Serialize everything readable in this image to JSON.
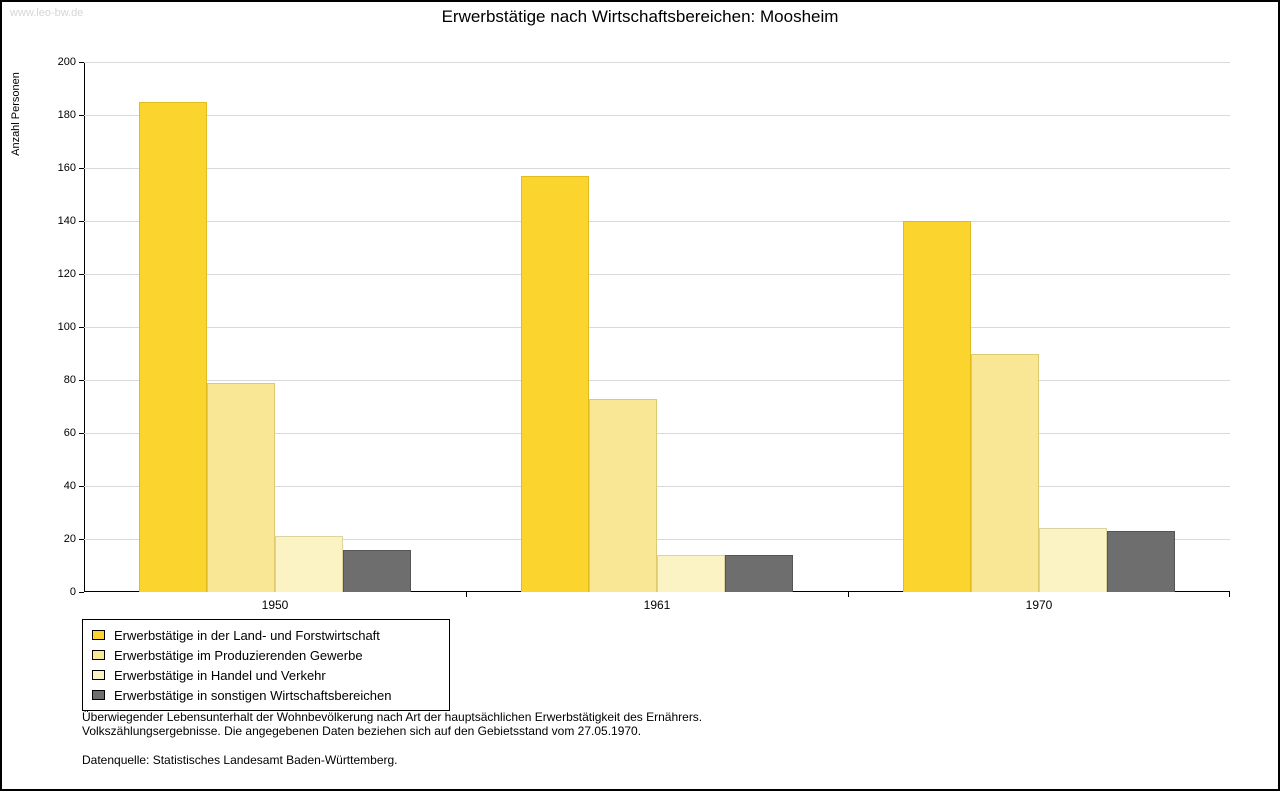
{
  "watermark": "www.leo-bw.de",
  "chart_data": {
    "type": "bar",
    "title": "Erwerbstätige nach Wirtschaftsbereichen: Moosheim",
    "ylabel": "Anzahl Personen",
    "xlabel": "",
    "ylim": [
      0,
      200
    ],
    "ytick_step": 20,
    "grid": true,
    "legend_position": "bottom-left",
    "categories": [
      "1950",
      "1961",
      "1970"
    ],
    "series": [
      {
        "name": "Erwerbstätige in der Land- und Forstwirtschaft",
        "color": "#FBD42E",
        "border": "#E0BC1F",
        "values": [
          185,
          157,
          140
        ]
      },
      {
        "name": "Erwerbstätige im Produzierenden Gewerbe",
        "color": "#F9E795",
        "border": "#DCC970",
        "values": [
          79,
          73,
          90
        ]
      },
      {
        "name": "Erwerbstätige in Handel und Verkehr",
        "color": "#FCF3C5",
        "border": "#DDD3A0",
        "values": [
          21,
          14,
          24
        ]
      },
      {
        "name": "Erwerbstätige in sonstigen Wirtschaftsbereichen",
        "color": "#6E6E6E",
        "border": "#555555",
        "values": [
          16,
          14,
          23
        ]
      }
    ]
  },
  "footnotes": {
    "line1": "Überwiegender Lebensunterhalt der Wohnbevölkerung nach Art der hauptsächlichen Erwerbstätigkeit des Ernährers.",
    "line2": "Volkszählungsergebnisse. Die angegebenen Daten beziehen sich auf den Gebietsstand vom 27.05.1970.",
    "source": "Datenquelle: Statistisches Landesamt Baden-Württemberg."
  }
}
